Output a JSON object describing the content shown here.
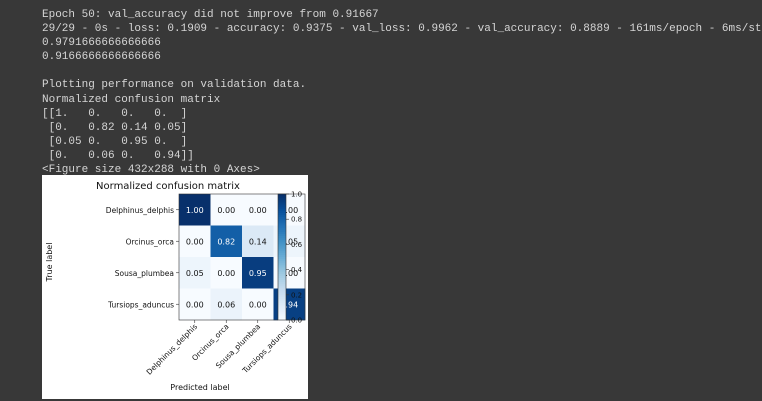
{
  "output_lines": [
    "Epoch 50: val_accuracy did not improve from 0.91667",
    "29/29 - 0s - loss: 0.1909 - accuracy: 0.9375 - val_loss: 0.9962 - val_accuracy: 0.8889 - 161ms/epoch - 6ms/step",
    "0.9791666666666666",
    "0.9166666666666666",
    "",
    "Plotting performance on validation data.",
    "Normalized confusion matrix",
    "[[1.   0.   0.   0.  ]",
    " [0.   0.82 0.14 0.05]",
    " [0.05 0.   0.95 0.  ]",
    " [0.   0.06 0.   0.94]]",
    "<Figure size 432x288 with 0 Axes>"
  ],
  "chart_data": {
    "type": "heatmap",
    "title": "Normalized confusion matrix",
    "xlabel": "Predicted label",
    "ylabel": "True label",
    "rows": [
      "Delphinus_delphis",
      "Orcinus_orca",
      "Sousa_plumbea",
      "Tursiops_aduncus"
    ],
    "cols": [
      "Delphinus_delphis",
      "Orcinus_orca",
      "Sousa_plumbea",
      "Tursiops_aduncus"
    ],
    "values": [
      [
        1.0,
        0.0,
        0.0,
        0.0
      ],
      [
        0.0,
        0.82,
        0.14,
        0.05
      ],
      [
        0.05,
        0.0,
        0.95,
        0.0
      ],
      [
        0.0,
        0.06,
        0.0,
        0.94
      ]
    ],
    "value_labels": [
      [
        "1.00",
        "0.00",
        "0.00",
        "0.00"
      ],
      [
        "0.00",
        "0.82",
        "0.14",
        "0.05"
      ],
      [
        "0.05",
        "0.00",
        "0.95",
        "0.00"
      ],
      [
        "0.00",
        "0.06",
        "0.00",
        "0.94"
      ]
    ],
    "colormap": "Blues",
    "colorbar": {
      "range": [
        0.0,
        1.0
      ],
      "ticks": [
        0.0,
        0.2,
        0.4,
        0.6,
        0.8,
        1.0
      ],
      "tick_labels": [
        "0.0",
        "0.2",
        "0.4",
        "0.6",
        "0.8",
        "1.0"
      ]
    }
  }
}
